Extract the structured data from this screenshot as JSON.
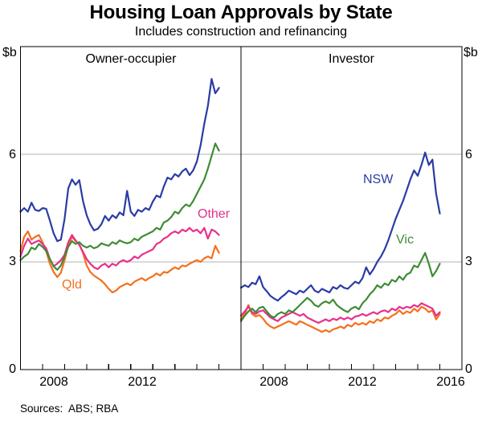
{
  "title": "Housing Loan Approvals by State",
  "subtitle": "Includes construction and refinancing",
  "footer": {
    "sources": "Sources:  ABS; RBA"
  },
  "colors": {
    "nsw": "#2a3ca5",
    "vic": "#3e8c35",
    "qld": "#f4701d",
    "other": "#e7308c",
    "gridline": "#b3b3b3",
    "frame": "#000000"
  },
  "chart_data": {
    "type": "line",
    "title": "Housing Loan Approvals by State",
    "subtitle": "Includes construction and refinancing",
    "ylabel": "$b",
    "ylim": [
      0,
      9
    ],
    "yticks": [
      0,
      3,
      6
    ],
    "ytick_labels": [
      "6",
      "3",
      "0"
    ],
    "gridlines": [
      3,
      6
    ],
    "grid": true,
    "legend_position": "inline-labels",
    "xlim": [
      2007,
      2017
    ],
    "x_start": 2007.0,
    "x_step": 0.1666667,
    "x_major_ticks": [
      2008,
      2009,
      2010,
      2011,
      2012,
      2013,
      2014,
      2015,
      2016
    ],
    "panels": [
      {
        "label": "Owner-occupier",
        "xticklabels": [
          "2008",
          "2012"
        ],
        "series": [
          {
            "name": "NSW",
            "color": "#2a3ca5",
            "values": [
              4.4,
              4.5,
              4.4,
              4.65,
              4.45,
              4.42,
              4.5,
              4.48,
              4.15,
              3.8,
              3.58,
              3.62,
              4.2,
              5.05,
              5.3,
              5.15,
              5.28,
              4.7,
              4.3,
              4.05,
              3.88,
              3.92,
              4.05,
              4.28,
              4.15,
              4.3,
              4.22,
              4.38,
              4.3,
              4.98,
              4.4,
              4.28,
              4.45,
              4.4,
              4.5,
              4.45,
              4.68,
              4.85,
              4.8,
              5.1,
              5.35,
              5.3,
              5.45,
              5.38,
              5.52,
              5.6,
              5.42,
              5.55,
              5.8,
              6.25,
              6.85,
              7.35,
              8.1,
              7.7,
              7.85
            ]
          },
          {
            "name": "Vic",
            "color": "#3e8c35",
            "values": [
              3.05,
              3.15,
              3.22,
              3.4,
              3.35,
              3.5,
              3.42,
              3.3,
              3.08,
              2.88,
              2.78,
              2.9,
              3.15,
              3.42,
              3.58,
              3.5,
              3.55,
              3.45,
              3.4,
              3.45,
              3.38,
              3.42,
              3.52,
              3.48,
              3.45,
              3.55,
              3.5,
              3.6,
              3.55,
              3.52,
              3.55,
              3.65,
              3.6,
              3.7,
              3.75,
              3.8,
              3.85,
              3.95,
              3.9,
              4.1,
              4.15,
              4.25,
              4.4,
              4.35,
              4.5,
              4.6,
              4.55,
              4.7,
              4.9,
              5.1,
              5.3,
              5.6,
              5.95,
              6.3,
              6.1
            ]
          },
          {
            "name": "Other",
            "color": "#e7308c",
            "values": [
              3.15,
              3.45,
              3.65,
              3.5,
              3.55,
              3.6,
              3.5,
              3.38,
              3.08,
              2.88,
              2.95,
              3.05,
              3.2,
              3.55,
              3.75,
              3.6,
              3.48,
              3.28,
              3.08,
              2.95,
              2.85,
              2.8,
              2.9,
              2.95,
              2.85,
              2.95,
              2.9,
              3.0,
              3.05,
              3.0,
              3.05,
              3.15,
              3.1,
              3.2,
              3.25,
              3.3,
              3.35,
              3.5,
              3.55,
              3.65,
              3.7,
              3.8,
              3.85,
              3.8,
              3.9,
              3.85,
              3.95,
              3.85,
              3.9,
              3.8,
              3.95,
              3.65,
              3.9,
              3.85,
              3.75
            ]
          },
          {
            "name": "Qld",
            "color": "#f4701d",
            "values": [
              3.3,
              3.7,
              3.85,
              3.62,
              3.7,
              3.75,
              3.55,
              3.3,
              2.95,
              2.72,
              2.58,
              2.7,
              3.05,
              3.45,
              3.7,
              3.58,
              3.48,
              3.25,
              2.9,
              2.72,
              2.62,
              2.55,
              2.48,
              2.38,
              2.25,
              2.15,
              2.2,
              2.3,
              2.35,
              2.4,
              2.35,
              2.45,
              2.5,
              2.55,
              2.48,
              2.55,
              2.6,
              2.68,
              2.62,
              2.72,
              2.7,
              2.78,
              2.85,
              2.8,
              2.9,
              2.88,
              2.95,
              3.0,
              3.05,
              3.0,
              3.1,
              3.15,
              3.1,
              3.45,
              3.25
            ]
          }
        ]
      },
      {
        "label": "Investor",
        "xticklabels": [
          "2008",
          "2012",
          "2016"
        ],
        "series": [
          {
            "name": "NSW",
            "color": "#2a3ca5",
            "values": [
              2.28,
              2.35,
              2.3,
              2.42,
              2.38,
              2.6,
              2.3,
              2.18,
              2.05,
              1.98,
              1.92,
              2.02,
              2.1,
              2.2,
              2.15,
              2.1,
              2.2,
              2.15,
              2.25,
              2.35,
              2.2,
              2.15,
              2.25,
              2.2,
              2.15,
              2.3,
              2.25,
              2.35,
              2.28,
              2.25,
              2.35,
              2.45,
              2.4,
              2.55,
              2.85,
              2.65,
              2.8,
              3.0,
              3.15,
              3.35,
              3.6,
              3.9,
              4.2,
              4.45,
              4.7,
              5.0,
              5.3,
              5.55,
              5.4,
              5.7,
              6.05,
              5.7,
              5.85,
              4.9,
              4.35
            ]
          },
          {
            "name": "Vic",
            "color": "#3e8c35",
            "values": [
              1.35,
              1.5,
              1.62,
              1.7,
              1.6,
              1.72,
              1.75,
              1.62,
              1.5,
              1.45,
              1.55,
              1.6,
              1.55,
              1.65,
              1.6,
              1.7,
              1.8,
              1.9,
              2.0,
              1.92,
              1.8,
              1.75,
              1.85,
              1.9,
              1.85,
              1.95,
              1.8,
              1.72,
              1.65,
              1.6,
              1.7,
              1.75,
              1.68,
              1.85,
              1.95,
              2.1,
              2.2,
              2.35,
              2.28,
              2.4,
              2.35,
              2.5,
              2.45,
              2.6,
              2.5,
              2.65,
              2.7,
              2.9,
              2.85,
              3.05,
              3.25,
              2.95,
              2.6,
              2.75,
              2.95
            ]
          },
          {
            "name": "Other",
            "color": "#e7308c",
            "values": [
              1.5,
              1.62,
              1.75,
              1.6,
              1.55,
              1.62,
              1.65,
              1.55,
              1.45,
              1.4,
              1.35,
              1.45,
              1.5,
              1.55,
              1.6,
              1.55,
              1.5,
              1.55,
              1.45,
              1.4,
              1.35,
              1.3,
              1.35,
              1.4,
              1.35,
              1.42,
              1.38,
              1.45,
              1.4,
              1.45,
              1.4,
              1.48,
              1.5,
              1.55,
              1.5,
              1.55,
              1.6,
              1.55,
              1.62,
              1.65,
              1.6,
              1.7,
              1.65,
              1.75,
              1.7,
              1.75,
              1.72,
              1.8,
              1.75,
              1.85,
              1.8,
              1.75,
              1.7,
              1.5,
              1.6
            ]
          },
          {
            "name": "Qld",
            "color": "#f4701d",
            "values": [
              1.4,
              1.55,
              1.8,
              1.55,
              1.48,
              1.52,
              1.42,
              1.28,
              1.2,
              1.15,
              1.2,
              1.25,
              1.3,
              1.35,
              1.3,
              1.25,
              1.35,
              1.3,
              1.25,
              1.2,
              1.15,
              1.1,
              1.05,
              1.1,
              1.05,
              1.12,
              1.15,
              1.2,
              1.15,
              1.25,
              1.2,
              1.3,
              1.25,
              1.3,
              1.25,
              1.35,
              1.3,
              1.4,
              1.35,
              1.45,
              1.42,
              1.5,
              1.55,
              1.65,
              1.55,
              1.62,
              1.58,
              1.7,
              1.62,
              1.75,
              1.7,
              1.6,
              1.65,
              1.4,
              1.55
            ]
          }
        ]
      }
    ]
  }
}
